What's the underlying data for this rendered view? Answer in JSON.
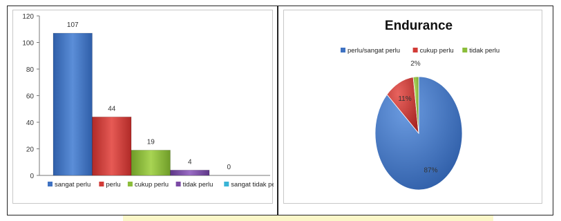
{
  "chart_data": [
    {
      "type": "bar",
      "title": "",
      "categories": [
        "sangat perlu",
        "perlu",
        "cukup perlu",
        "tidak perlu",
        "sangat tidak perlu"
      ],
      "values": [
        107,
        44,
        19,
        4,
        0
      ],
      "colors": [
        "#3f72c2",
        "#d23b37",
        "#8bbd3a",
        "#7b4aa5",
        "#3ab4d6"
      ],
      "ylim": [
        0,
        120
      ],
      "yticks": [
        0,
        20,
        40,
        60,
        80,
        100,
        120
      ],
      "data_labels": true,
      "grid": false,
      "legend": "bottom"
    },
    {
      "type": "pie",
      "title": "Endurance",
      "labels": [
        "perlu/sangat perlu",
        "cukup perlu",
        "tidak perlu"
      ],
      "values": [
        87,
        11,
        2
      ],
      "value_labels": [
        "87%",
        "11%",
        "2%"
      ],
      "colors": [
        "#3f72c2",
        "#d23b37",
        "#8bbd3a"
      ],
      "legend": "top"
    }
  ]
}
